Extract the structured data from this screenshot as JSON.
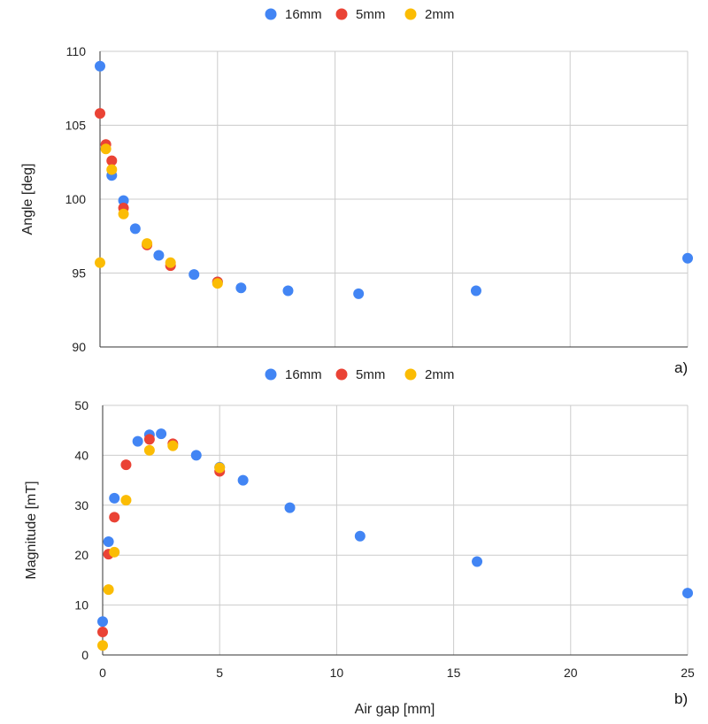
{
  "chart_data": [
    {
      "type": "scatter",
      "panel_label": "a)",
      "ylabel": "Angle [deg]",
      "xlabel": "",
      "xlim": [
        0,
        25
      ],
      "ylim": [
        90,
        110
      ],
      "yticks": [
        "90",
        "95",
        "100",
        "105",
        "110"
      ],
      "grid": true,
      "legend_position": "top",
      "series": [
        {
          "name": "16mm",
          "color": "#4285F4",
          "points": [
            [
              0,
              109.0
            ],
            [
              0.5,
              101.6
            ],
            [
              1,
              99.9
            ],
            [
              1.5,
              98.0
            ],
            [
              2.5,
              96.2
            ],
            [
              4,
              94.9
            ],
            [
              5,
              94.4
            ],
            [
              6,
              94.0
            ],
            [
              8,
              93.8
            ],
            [
              11,
              93.6
            ],
            [
              16,
              93.8
            ],
            [
              25,
              96.0
            ]
          ]
        },
        {
          "name": "5mm",
          "color": "#EA4335",
          "points": [
            [
              0,
              105.8
            ],
            [
              0.25,
              103.7
            ],
            [
              0.5,
              102.6
            ],
            [
              1,
              99.4
            ],
            [
              2,
              96.9
            ],
            [
              3,
              95.5
            ],
            [
              5,
              94.4
            ]
          ]
        },
        {
          "name": "2mm",
          "color": "#FBBC04",
          "points": [
            [
              0,
              95.7
            ],
            [
              0.25,
              103.4
            ],
            [
              0.5,
              102.0
            ],
            [
              1,
              99.0
            ],
            [
              2,
              97.0
            ],
            [
              3,
              95.7
            ],
            [
              5,
              94.3
            ]
          ]
        }
      ]
    },
    {
      "type": "scatter",
      "panel_label": "b)",
      "ylabel": "Magnitude [mT]",
      "xlabel": "Air gap [mm]",
      "xlim": [
        0,
        25
      ],
      "ylim": [
        0,
        50
      ],
      "xticks": [
        "0",
        "5",
        "10",
        "15",
        "20",
        "25"
      ],
      "yticks": [
        "0",
        "10",
        "20",
        "30",
        "40",
        "50"
      ],
      "grid": true,
      "legend_position": "top",
      "series": [
        {
          "name": "16mm",
          "color": "#4285F4",
          "points": [
            [
              0,
              6.7
            ],
            [
              0.25,
              22.7
            ],
            [
              0.5,
              31.4
            ],
            [
              1.5,
              42.8
            ],
            [
              2,
              44.1
            ],
            [
              2.5,
              44.3
            ],
            [
              4,
              40.0
            ],
            [
              5,
              37.6
            ],
            [
              6,
              35.0
            ],
            [
              8,
              29.5
            ],
            [
              11,
              23.8
            ],
            [
              16,
              18.7
            ],
            [
              25,
              12.4
            ]
          ]
        },
        {
          "name": "5mm",
          "color": "#EA4335",
          "points": [
            [
              0,
              4.6
            ],
            [
              0.25,
              20.2
            ],
            [
              0.5,
              27.6
            ],
            [
              1,
              38.1
            ],
            [
              2,
              43.2
            ],
            [
              3,
              42.3
            ],
            [
              5,
              36.8
            ]
          ]
        },
        {
          "name": "2mm",
          "color": "#FBBC04",
          "points": [
            [
              0,
              1.9
            ],
            [
              0.25,
              13.1
            ],
            [
              0.5,
              20.6
            ],
            [
              1,
              31.0
            ],
            [
              2,
              41.0
            ],
            [
              3,
              41.9
            ],
            [
              5,
              37.5
            ]
          ]
        }
      ]
    }
  ]
}
